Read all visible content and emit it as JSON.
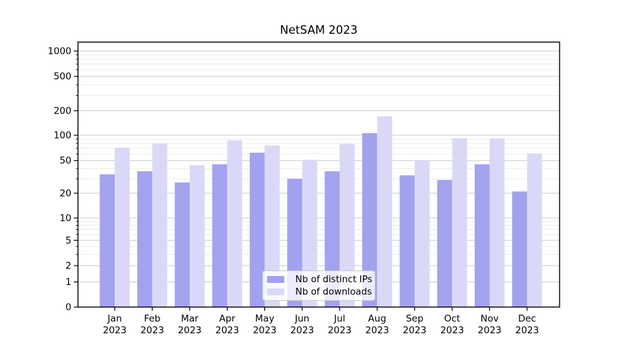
{
  "chart_data": {
    "type": "bar",
    "title": "NetSAM 2023",
    "categories": [
      "Jan",
      "Feb",
      "Mar",
      "Apr",
      "May",
      "Jun",
      "Jul",
      "Aug",
      "Sep",
      "Oct",
      "Nov",
      "Dec"
    ],
    "year_label": "2023",
    "series": [
      {
        "name": "Nb of distinct IPs",
        "color": "#a2a2ef",
        "values": [
          34,
          37,
          27,
          45,
          62,
          30,
          37,
          106,
          33,
          29,
          45,
          21
        ]
      },
      {
        "name": "Nb of downloads",
        "color": "#d9d9f7",
        "values": [
          71,
          80,
          44,
          87,
          76,
          51,
          79,
          171,
          50,
          92,
          92,
          61
        ]
      }
    ],
    "yscale": "symlog",
    "ylim": [
      0,
      1000
    ],
    "yticks": [
      0,
      1,
      2,
      5,
      10,
      20,
      50,
      100,
      200,
      500,
      1000
    ],
    "yminor_gridlines": [
      3,
      4,
      6,
      7,
      8,
      9,
      30,
      40,
      60,
      70,
      80,
      90,
      300,
      400,
      600,
      700,
      800,
      900
    ],
    "grid": "horizontal",
    "legend_position": "bottom-center",
    "colors": {
      "axis": "#000000",
      "major_grid": "#c9c9c9",
      "minor_grid": "#ececec",
      "text": "#000000",
      "legend_border": "#c9c9c9"
    }
  }
}
